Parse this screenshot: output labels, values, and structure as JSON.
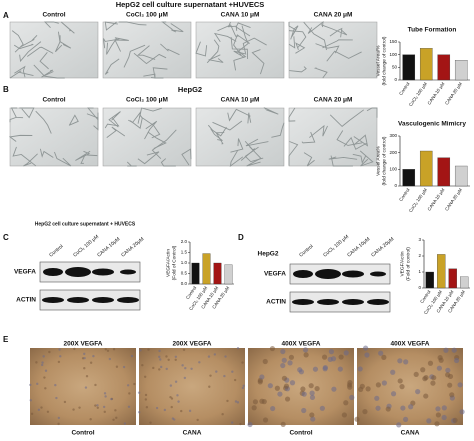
{
  "panels": {
    "A": {
      "letter": "A",
      "title": "HepG2 cell culture supernatant +HUVECS",
      "labels": [
        "Control",
        "CoCl₂ 100 μM",
        "CANA 10 μM",
        "CANA 20 μM"
      ]
    },
    "B": {
      "letter": "B",
      "title": "HepG2",
      "labels": [
        "Control",
        "CoCl₂ 100 μM",
        "CANA 10 μM",
        "CANA 20 μM"
      ]
    },
    "C": {
      "letter": "C",
      "title": "HepG2 cell culture supernatant + HUVECS",
      "lanes": [
        "Control",
        "CoCl₂ 100 μM",
        "CANA 10μM",
        "CANA 20μM"
      ],
      "rows": [
        "VEGFA",
        "ACTIN"
      ]
    },
    "D": {
      "letter": "D",
      "title": "HepG2",
      "lanes": [
        "Control",
        "CoCl₂ 100 μM",
        "CANA 10μM",
        "CANA 20μM"
      ],
      "rows": [
        "VEGFA",
        "ACTIN"
      ]
    },
    "E": {
      "letter": "E",
      "top": [
        "200X VEGFA",
        "200X VEGFA",
        "400X VEGFA",
        "400X VEGFA"
      ],
      "bottom": [
        "Control",
        "CANA",
        "Control",
        "CANA"
      ]
    }
  },
  "chart_data": [
    {
      "type": "bar",
      "title": "Tube Formation",
      "y_label": [
        "Vessel Area/%",
        "(fold change of control)"
      ],
      "categories": [
        "Control",
        "CoCl₂ 100 μM",
        "CANA 10 μM",
        "CANA 20 μM"
      ],
      "values": [
        100,
        125,
        100,
        78
      ],
      "colors": [
        "#111111",
        "#c9a227",
        "#a31515",
        "#d0d0d0"
      ],
      "ylim": [
        0,
        150
      ],
      "yticks": [
        0,
        50,
        100,
        150
      ]
    },
    {
      "type": "bar",
      "title": "Vasculogenic Mimicry",
      "y_label": [
        "Vessel Area%",
        "(fold change of control)"
      ],
      "categories": [
        "Control",
        "CoCl₂ 100 μM",
        "CANA 10 μM",
        "CANA 20 μM"
      ],
      "values": [
        100,
        210,
        170,
        120
      ],
      "colors": [
        "#111111",
        "#c9a227",
        "#a31515",
        "#d0d0d0"
      ],
      "ylim": [
        0,
        300
      ],
      "yticks": [
        0,
        100,
        200,
        300
      ]
    },
    {
      "type": "bar",
      "y_label": [
        "VEGFA/Actin",
        "(Fold of Control)"
      ],
      "categories": [
        "Control",
        "CoCl₂ 100 μM",
        "CANA 10 μM",
        "CANA 20 μM"
      ],
      "values": [
        1.0,
        1.45,
        1.0,
        0.92
      ],
      "colors": [
        "#111111",
        "#c9a227",
        "#a31515",
        "#d0d0d0"
      ],
      "ylim": [
        0,
        2
      ],
      "yticks": [
        {
          "value": 0,
          "label": "0.0"
        },
        {
          "value": 0.5,
          "label": "0.5"
        },
        {
          "value": 1,
          "label": "1.0"
        },
        {
          "value": 1.5,
          "label": "1.5"
        },
        {
          "value": 2,
          "label": "2.0"
        }
      ]
    },
    {
      "type": "bar",
      "y_label": [
        "VEGF/Actin",
        "(Fold of control)"
      ],
      "categories": [
        "Control",
        "CoCl₂ 100 μM",
        "CANA 10 μM",
        "CANA 20 μM"
      ],
      "values": [
        1.0,
        2.1,
        1.2,
        0.7
      ],
      "colors": [
        "#111111",
        "#c9a227",
        "#a31515",
        "#d0d0d0"
      ],
      "ylim": [
        0,
        3
      ],
      "yticks": [
        0,
        1,
        2,
        3
      ]
    }
  ]
}
